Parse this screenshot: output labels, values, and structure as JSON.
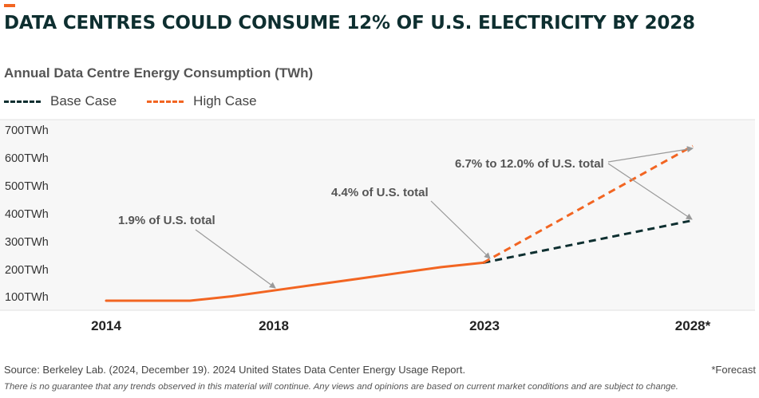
{
  "header": {
    "title": "DATA CENTRES COULD CONSUME 12% OF U.S. ELECTRICITY BY 2028",
    "subtitle": "Annual Data Centre Energy Consumption (TWh)",
    "accent_color": "#f26522"
  },
  "legend": {
    "items": [
      {
        "label": "Base Case",
        "color": "#0e2f30"
      },
      {
        "label": "High Case",
        "color": "#f26522"
      }
    ]
  },
  "chart_data": {
    "type": "line",
    "title": "DATA CENTRES COULD CONSUME 12% OF U.S. ELECTRICITY BY 2028",
    "subtitle": "Annual Data Centre Energy Consumption (TWh)",
    "xlabel": "",
    "ylabel": "",
    "x_ticks": [
      "2014",
      "2018",
      "2023",
      "2028*"
    ],
    "x_range": [
      2014,
      2028
    ],
    "y_ticks": [
      "100TWh",
      "200TWh",
      "300TWh",
      "400TWh",
      "500TWh",
      "600TWh",
      "700TWh"
    ],
    "y_range": [
      70,
      720
    ],
    "grid": false,
    "legend_position": "top-left",
    "background": "#f7f7f7",
    "historical": {
      "color": "#f26522",
      "points": [
        {
          "x": 2014,
          "y": 100
        },
        {
          "x": 2015,
          "y": 100
        },
        {
          "x": 2016,
          "y": 100
        },
        {
          "x": 2017,
          "y": 115
        },
        {
          "x": 2018,
          "y": 135
        },
        {
          "x": 2019,
          "y": 155
        },
        {
          "x": 2020,
          "y": 175
        },
        {
          "x": 2021,
          "y": 195
        },
        {
          "x": 2022,
          "y": 215
        },
        {
          "x": 2023,
          "y": 230
        }
      ]
    },
    "series": [
      {
        "name": "Base Case",
        "color": "#0e2f30",
        "dashed": true,
        "points": [
          {
            "x": 2023,
            "y": 230
          },
          {
            "x": 2028,
            "y": 375
          }
        ]
      },
      {
        "name": "High Case",
        "color": "#f26522",
        "dashed": true,
        "points": [
          {
            "x": 2023,
            "y": 230
          },
          {
            "x": 2028,
            "y": 630
          }
        ]
      }
    ],
    "annotations": [
      {
        "text": "1.9% of U.S. total"
      },
      {
        "text": "4.4% of U.S. total"
      },
      {
        "text": "6.7% to 12.0% of U.S. total"
      }
    ]
  },
  "footer": {
    "source": "Source: Berkeley Lab. (2024, December 19). 2024 United States Data Center Energy Usage Report.",
    "forecast_note": "*Forecast",
    "disclaimer": "There is no guarantee that any trends observed in this material will continue. Any views and opinions are based on current market conditions and are subject to change."
  }
}
